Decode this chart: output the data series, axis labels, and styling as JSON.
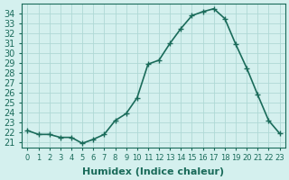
{
  "xlabel": "Humidex (Indice chaleur)",
  "ylabel": "",
  "x": [
    0,
    1,
    2,
    3,
    4,
    5,
    6,
    7,
    8,
    9,
    10,
    11,
    12,
    13,
    14,
    15,
    16,
    17,
    18,
    19,
    20,
    21,
    22,
    23
  ],
  "y": [
    22.2,
    21.8,
    21.8,
    21.5,
    21.5,
    20.9,
    21.3,
    21.8,
    23.2,
    23.9,
    25.5,
    28.9,
    29.3,
    31.0,
    32.5,
    33.8,
    34.2,
    34.5,
    33.5,
    30.9,
    28.5,
    25.8,
    23.2,
    21.9
  ],
  "line_color": "#1a6b5a",
  "marker": "+",
  "marker_size": 5,
  "bg_color": "#d4f0ee",
  "grid_color": "#b0d9d5",
  "ylim": [
    20.5,
    35.0
  ],
  "yticks": [
    21,
    22,
    23,
    24,
    25,
    26,
    27,
    28,
    29,
    30,
    31,
    32,
    33,
    34
  ],
  "xtick_labels": [
    "0",
    "1",
    "2",
    "3",
    "4",
    "5",
    "6",
    "7",
    "8",
    "9",
    "10",
    "11",
    "12",
    "13",
    "14",
    "15",
    "16",
    "17",
    "18",
    "19",
    "20",
    "21",
    "22",
    "23"
  ],
  "axis_color": "#1a6b5a",
  "label_fontsize": 8,
  "tick_fontsize": 7
}
